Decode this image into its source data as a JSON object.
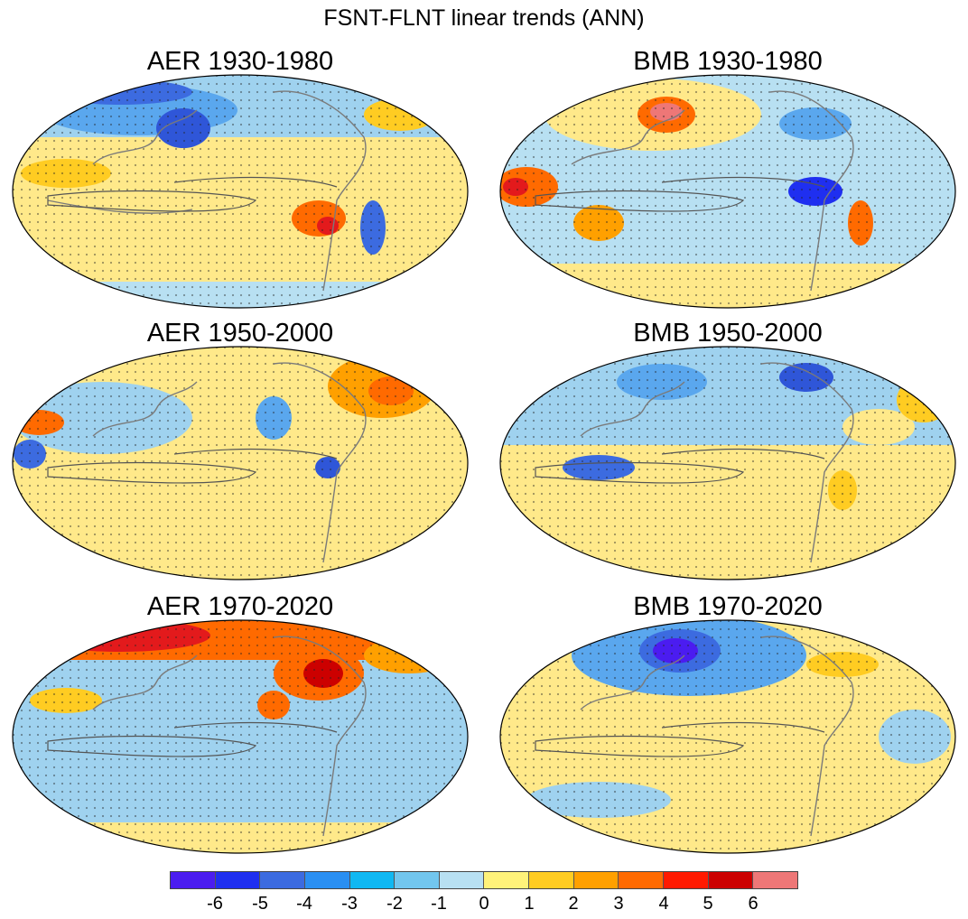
{
  "figure": {
    "title": "FSNT-FLNT linear trends (ANN)",
    "panels": [
      {
        "label": "AER 1930-1980"
      },
      {
        "label": "BMB 1930-1980"
      },
      {
        "label": "AER 1950-2000"
      },
      {
        "label": "BMB 1950-2000"
      },
      {
        "label": "AER 1970-2020"
      },
      {
        "label": "BMB 1970-2020"
      }
    ]
  },
  "colorbar": {
    "colors": [
      "#4b1cf0",
      "#1f2ff0",
      "#3c6be0",
      "#2a8ff2",
      "#10b8f2",
      "#72c6ee",
      "#b8e0f2",
      "#fff27a",
      "#ffcc22",
      "#ffa000",
      "#ff6a00",
      "#ff1a00",
      "#cc0000",
      "#ee7777"
    ],
    "tick_labels": [
      "-6",
      "-5",
      "-4",
      "-3",
      "-2",
      "-1",
      "0",
      "1",
      "2",
      "3",
      "4",
      "5",
      "6"
    ]
  },
  "map_colors": {
    "ocean_base": "#ffe98a",
    "coastline": "#7a7a7a"
  }
}
